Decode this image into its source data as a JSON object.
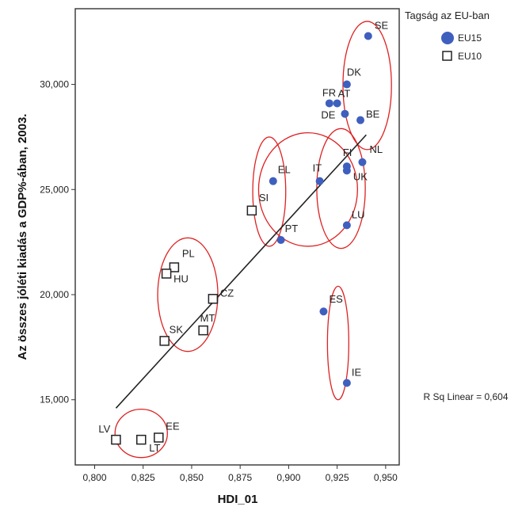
{
  "chart_data": {
    "type": "scatter",
    "xlabel": "HDI_01",
    "ylabel": "Az összes jóléti kiadás a GDP%-ában, 2003.",
    "xlim": [
      0.79,
      0.957
    ],
    "ylim": [
      11900,
      33600
    ],
    "x_ticks": [
      0.8,
      0.825,
      0.85,
      0.875,
      0.9,
      0.925,
      0.95
    ],
    "x_tick_labels": [
      "0,800",
      "0,825",
      "0,850",
      "0,875",
      "0,900",
      "0,925",
      "0,950"
    ],
    "y_ticks": [
      15000,
      20000,
      25000,
      30000
    ],
    "y_tick_labels": [
      "15,000",
      "20,000",
      "25,000",
      "30,000"
    ],
    "grid": false,
    "legend": {
      "title": "Tagság az EU-ban",
      "placement": "top-right",
      "entries": [
        {
          "label": "EU15",
          "marker": "filled-circle",
          "color": "#3f5fbf"
        },
        {
          "label": "EU10",
          "marker": "open-square",
          "color": "#222222"
        }
      ]
    },
    "series": [
      {
        "name": "EU15",
        "color": "#3f5fbf",
        "points": [
          {
            "label": "SE",
            "x": 0.941,
            "y": 32300
          },
          {
            "label": "DK",
            "x": 0.93,
            "y": 30000
          },
          {
            "label": "FR",
            "x": 0.921,
            "y": 29100
          },
          {
            "label": "AT",
            "x": 0.925,
            "y": 29100
          },
          {
            "label": "DE",
            "x": 0.929,
            "y": 28600
          },
          {
            "label": "BE",
            "x": 0.937,
            "y": 28300
          },
          {
            "label": "NL",
            "x": 0.938,
            "y": 26300
          },
          {
            "label": "FI",
            "x": 0.93,
            "y": 26100
          },
          {
            "label": "UK",
            "x": 0.93,
            "y": 25900
          },
          {
            "label": "IT",
            "x": 0.916,
            "y": 25400
          },
          {
            "label": "EL",
            "x": 0.892,
            "y": 25400
          },
          {
            "label": "LU",
            "x": 0.93,
            "y": 23300
          },
          {
            "label": "PT",
            "x": 0.896,
            "y": 22600
          },
          {
            "label": "ES",
            "x": 0.918,
            "y": 19200
          },
          {
            "label": "IE",
            "x": 0.93,
            "y": 15800
          }
        ]
      },
      {
        "name": "EU10",
        "color": "#222222",
        "points": [
          {
            "label": "SI",
            "x": 0.881,
            "y": 24000
          },
          {
            "label": "PL",
            "x": 0.841,
            "y": 21300
          },
          {
            "label": "HU",
            "x": 0.837,
            "y": 21000
          },
          {
            "label": "CZ",
            "x": 0.861,
            "y": 19800
          },
          {
            "label": "MT",
            "x": 0.856,
            "y": 18300
          },
          {
            "label": "SK",
            "x": 0.836,
            "y": 17800
          },
          {
            "label": "EE",
            "x": 0.833,
            "y": 13200
          },
          {
            "label": "LV",
            "x": 0.811,
            "y": 13100
          },
          {
            "label": "LT",
            "x": 0.824,
            "y": 13100
          }
        ]
      }
    ],
    "fit_line": {
      "type": "linear",
      "x0": 0.811,
      "y0": 14600,
      "x1": 0.94,
      "y1": 27600
    },
    "r_squared_label": "R Sq Linear = 0,604",
    "annotations": [
      {
        "shape": "ellipse",
        "cx": 0.9405,
        "cy": 29950,
        "rx": 0.0125,
        "ry": 3050,
        "color": "#dd2222"
      },
      {
        "shape": "ellipse",
        "cx": 0.91,
        "cy": 25000,
        "rx": 0.0255,
        "ry": 2700,
        "color": "#dd2222"
      },
      {
        "shape": "ellipse",
        "cx": 0.89,
        "cy": 24900,
        "rx": 0.0085,
        "ry": 2600,
        "color": "#dd2222"
      },
      {
        "shape": "ellipse",
        "cx": 0.927,
        "cy": 25050,
        "rx": 0.0125,
        "ry": 2850,
        "color": "#dd2222"
      },
      {
        "shape": "ellipse",
        "cx": 0.848,
        "cy": 20000,
        "rx": 0.0155,
        "ry": 2700,
        "color": "#dd2222"
      },
      {
        "shape": "ellipse",
        "cx": 0.9255,
        "cy": 17700,
        "rx": 0.0055,
        "ry": 2700,
        "color": "#dd2222"
      },
      {
        "shape": "ellipse",
        "cx": 0.824,
        "cy": 13400,
        "rx": 0.0135,
        "ry": 1150,
        "color": "#dd2222"
      }
    ]
  }
}
